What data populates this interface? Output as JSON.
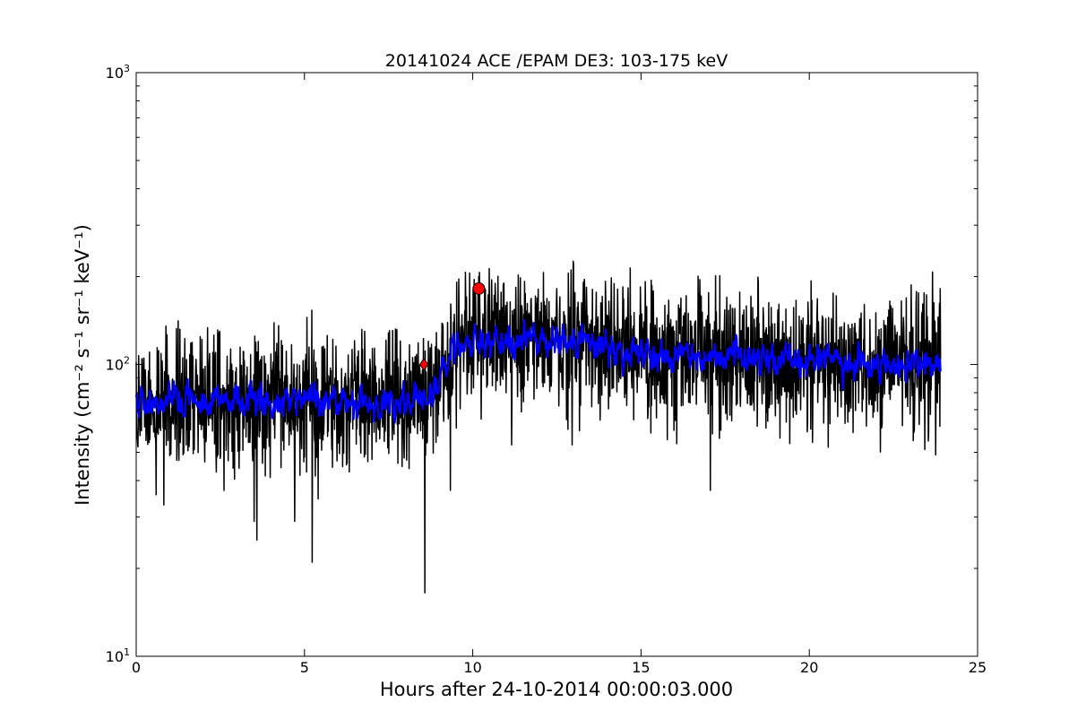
{
  "chart_data": {
    "type": "line",
    "title": "20141024 ACE /EPAM DE3: 103-175 keV",
    "xlabel": "Hours after 24-10-2014 00:00:03.000",
    "ylabel": "Intensity (cm⁻² s⁻¹ sr⁻¹ keV⁻¹)",
    "xlim": [
      0,
      25
    ],
    "ylim": [
      10,
      1000
    ],
    "yscale": "log",
    "x_ticks": [
      0,
      5,
      10,
      15,
      20,
      25
    ],
    "x_tick_labels": [
      "0",
      "5",
      "10",
      "15",
      "20",
      "25"
    ],
    "y_ticks": [
      10,
      100,
      1000
    ],
    "y_tick_labels": [
      {
        "base": "10",
        "exp": "1"
      },
      {
        "base": "10",
        "exp": "2"
      },
      {
        "base": "10",
        "exp": "3"
      }
    ],
    "grid": false,
    "series": [
      {
        "role": "raw-intensity",
        "color": "#000000",
        "x_range": [
          0.0,
          23.9
        ],
        "profile": [
          {
            "x": 0.0,
            "y": 75
          },
          {
            "x": 8.6,
            "y": 75
          },
          {
            "x": 9.5,
            "y": 120
          },
          {
            "x": 12.0,
            "y": 125
          },
          {
            "x": 15.0,
            "y": 112
          },
          {
            "x": 20.0,
            "y": 103
          },
          {
            "x": 23.9,
            "y": 98
          }
        ],
        "noise_factor": 1.3,
        "spikes": [
          {
            "x": 0.82,
            "y": 33
          },
          {
            "x": 3.5,
            "y": 29
          },
          {
            "x": 3.58,
            "y": 25
          },
          {
            "x": 4.7,
            "y": 29
          },
          {
            "x": 5.07,
            "y": 145
          },
          {
            "x": 5.22,
            "y": 21
          },
          {
            "x": 8.57,
            "y": 16.5
          },
          {
            "x": 9.33,
            "y": 37
          },
          {
            "x": 10.17,
            "y": 200
          },
          {
            "x": 10.25,
            "y": 65
          },
          {
            "x": 11.15,
            "y": 53
          },
          {
            "x": 12.95,
            "y": 53
          },
          {
            "x": 17.05,
            "y": 37
          },
          {
            "x": 23.75,
            "y": 49
          },
          {
            "x": 23.88,
            "y": 182
          }
        ]
      },
      {
        "role": "smoothed-intensity",
        "color": "#0000ff",
        "x_range": [
          0.0,
          23.9
        ],
        "profile": [
          {
            "x": 0.0,
            "y": 75
          },
          {
            "x": 8.6,
            "y": 74
          },
          {
            "x": 9.5,
            "y": 120
          },
          {
            "x": 12.0,
            "y": 123
          },
          {
            "x": 15.0,
            "y": 110
          },
          {
            "x": 20.0,
            "y": 102
          },
          {
            "x": 23.9,
            "y": 97
          }
        ],
        "noise_factor": 1.12
      }
    ],
    "markers": [
      {
        "shape": "diamond",
        "x": 8.55,
        "y": 100,
        "color": "#ff0000"
      },
      {
        "shape": "circle",
        "x": 10.18,
        "y": 182,
        "color": "#ff0000"
      }
    ]
  }
}
